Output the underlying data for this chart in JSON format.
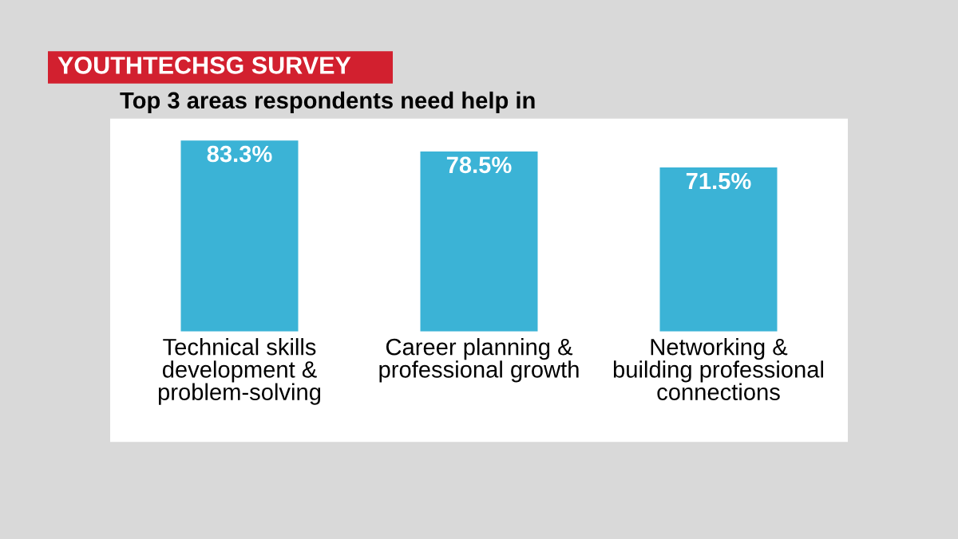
{
  "chart_data": {
    "type": "bar",
    "title": "YOUTHTECHSG SURVEY",
    "subtitle": "Top 3 areas respondents need help in",
    "categories": [
      "Technical skills\ndevelopment &\nproblem-solving",
      "Career planning &\nprofessional growth",
      "Networking &\nbuilding professional\nconnections"
    ],
    "values": [
      83.3,
      78.5,
      71.5
    ],
    "value_labels": [
      "83.3%",
      "78.5%",
      "71.5%"
    ],
    "color": "#3bb3d6",
    "grid": false
  }
}
